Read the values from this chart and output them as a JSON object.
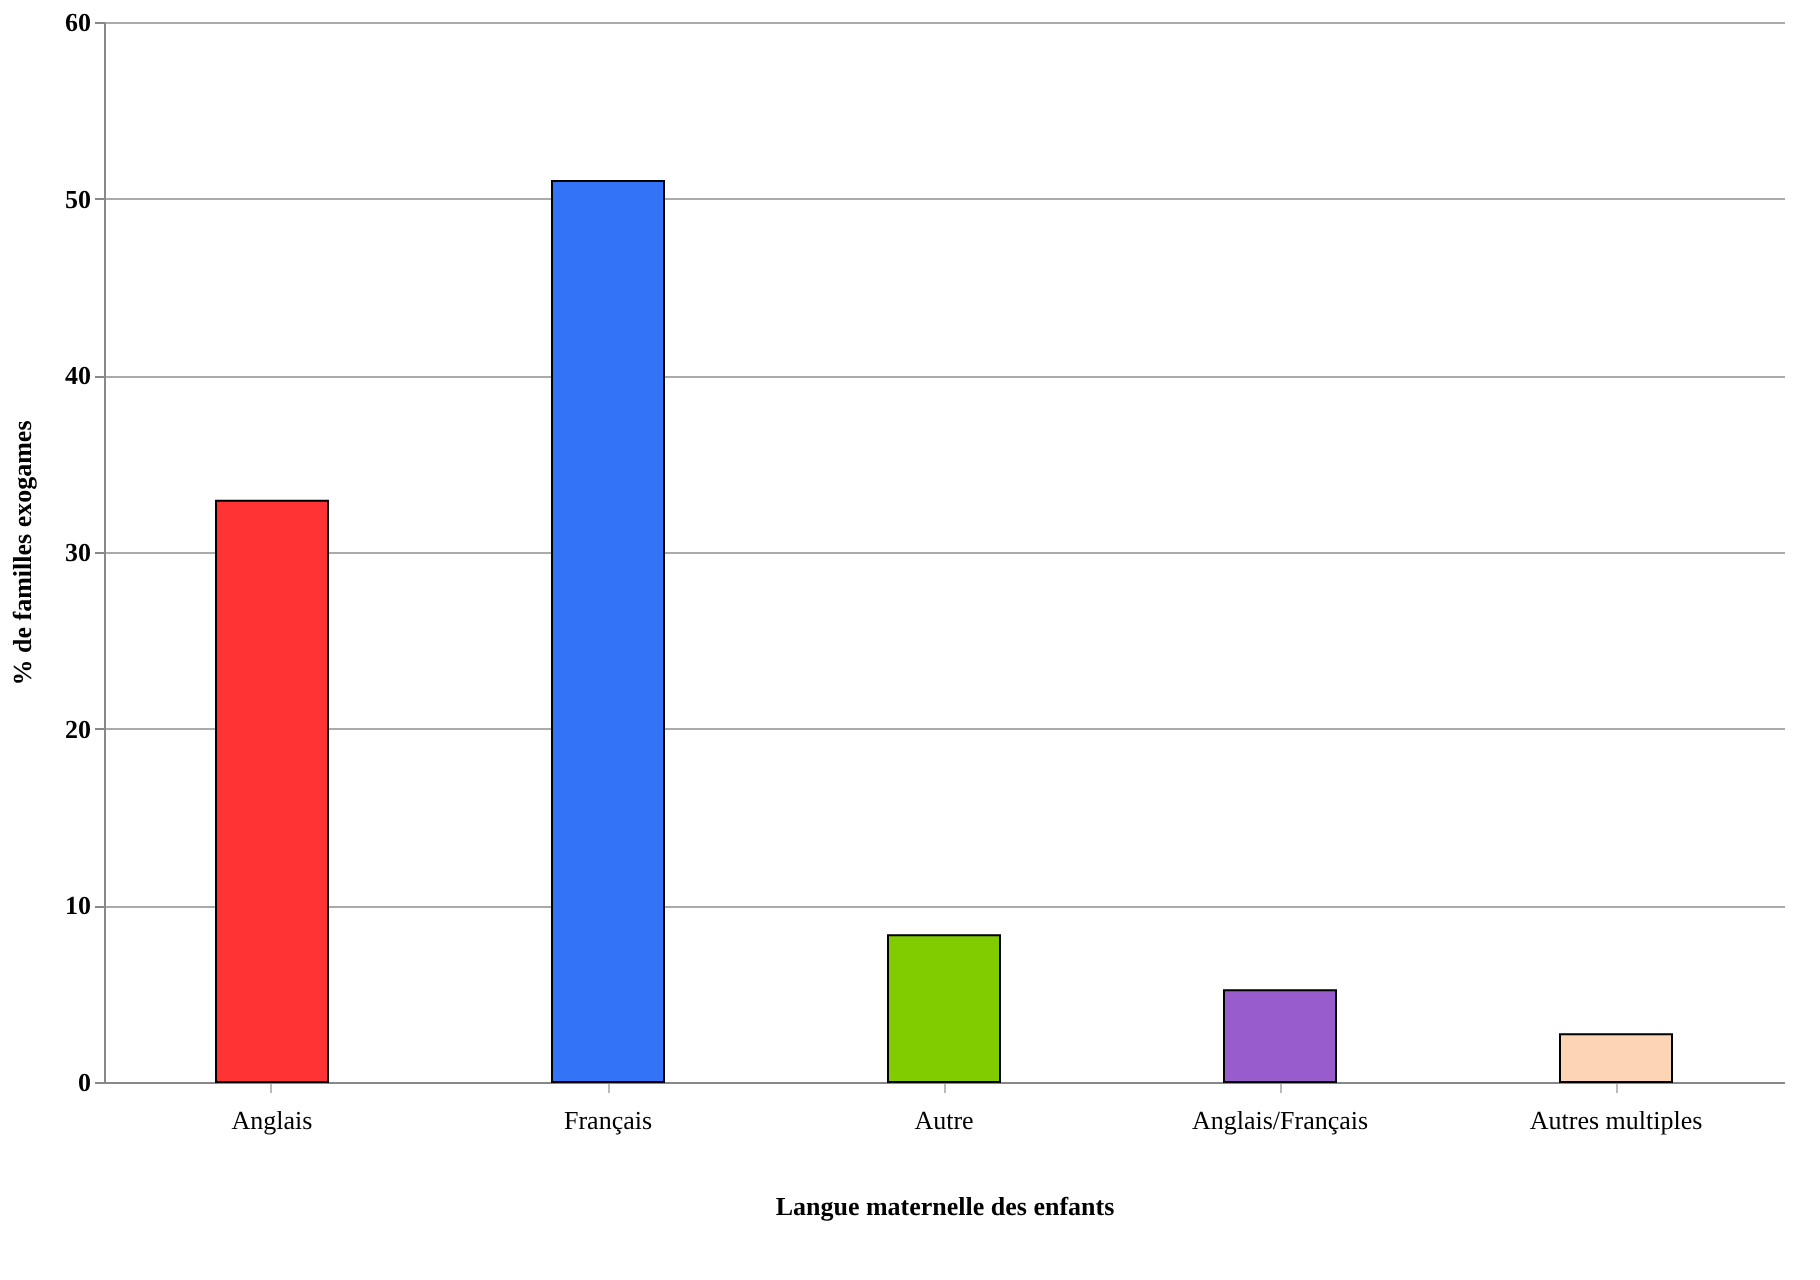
{
  "chart_data": {
    "type": "bar",
    "xlabel": "Langue maternelle des enfants",
    "ylabel": "% de familles exogames",
    "categories": [
      "Anglais",
      "Français",
      "Autre",
      "Anglais/Français",
      "Autres multiples"
    ],
    "values": [
      32.9,
      51.0,
      8.3,
      5.2,
      2.7
    ],
    "colors": [
      "#ff3333",
      "#3374f6",
      "#80cc00",
      "#995ccc",
      "#fcd5b4"
    ],
    "ylim": [
      0,
      60
    ],
    "yticks": [
      0,
      10,
      20,
      30,
      40,
      50,
      60
    ],
    "grid": "y",
    "legend": false
  }
}
